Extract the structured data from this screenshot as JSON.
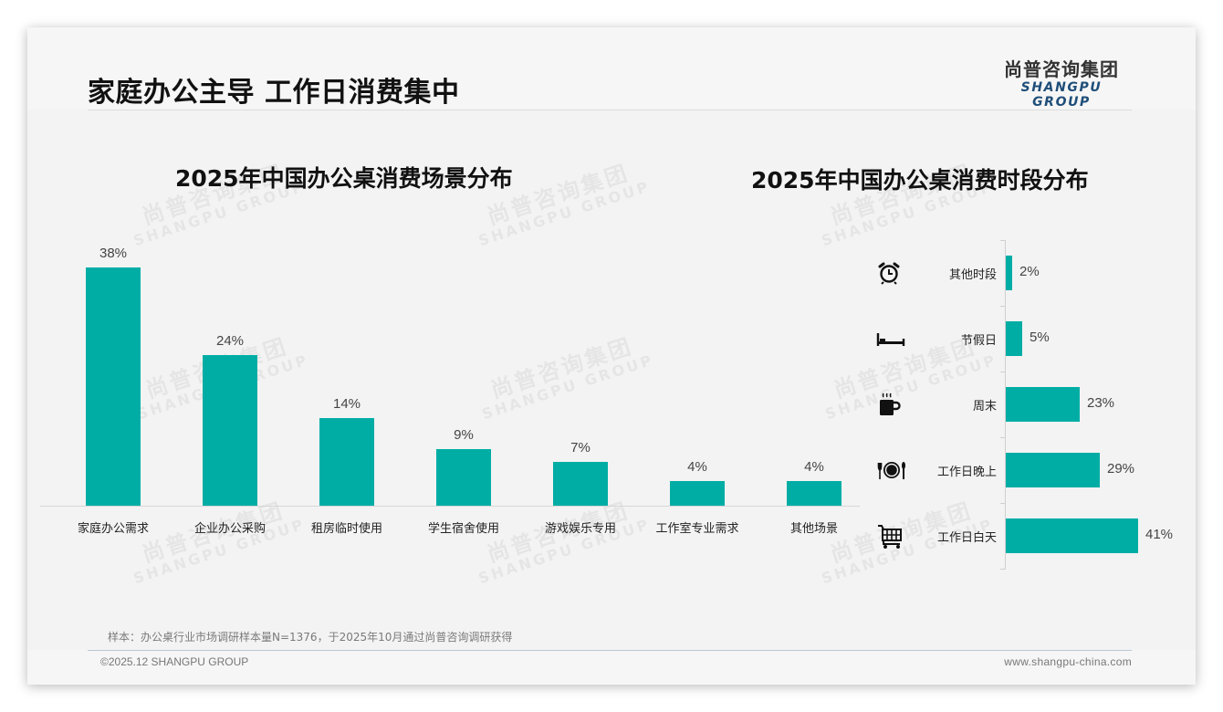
{
  "header": {
    "title": "家庭办公主导 工作日消费集中",
    "logo_cn": "尚普咨询集团",
    "logo_en": "SHANGPU GROUP"
  },
  "watermark": {
    "cn": "尚普咨询集团",
    "en": "SHANGPU GROUP"
  },
  "colors": {
    "bar": "#00ada5",
    "logo_en": "#1f4e79",
    "title": "#111111"
  },
  "chart_data": [
    {
      "type": "bar",
      "title": "2025年中国办公桌消费场景分布",
      "categories": [
        "家庭办公需求",
        "企业办公采购",
        "租房临时使用",
        "学生宿舍使用",
        "游戏娱乐专用",
        "工作室专业需求",
        "其他场景"
      ],
      "values": [
        38,
        24,
        14,
        9,
        7,
        4,
        4
      ],
      "value_labels": [
        "38%",
        "24%",
        "14%",
        "9%",
        "7%",
        "4%",
        "4%"
      ],
      "unit": "%",
      "xlabel": "",
      "ylabel": "",
      "ylim": [
        0,
        40
      ],
      "grid": false,
      "legend": "none"
    },
    {
      "type": "bar",
      "orientation": "horizontal",
      "title": "2025年中国办公桌消费时段分布",
      "categories": [
        "其他时段",
        "节假日",
        "周末",
        "工作日晚上",
        "工作日白天"
      ],
      "values": [
        2,
        5,
        23,
        29,
        41
      ],
      "value_labels": [
        "2%",
        "5%",
        "23%",
        "29%",
        "41%"
      ],
      "icons": [
        "alarm-clock-icon",
        "bed-icon",
        "coffee-mug-icon",
        "dinner-plate-icon",
        "shopping-cart-icon"
      ],
      "unit": "%",
      "xlim": [
        0,
        45
      ],
      "grid": false,
      "legend": "none"
    }
  ],
  "footer": {
    "sample_note": "样本：办公桌行业市场调研样本量N=1376，于2025年10月通过尚普咨询调研获得",
    "copyright": "©2025.12 SHANGPU GROUP",
    "website": "www.shangpu-china.com"
  }
}
